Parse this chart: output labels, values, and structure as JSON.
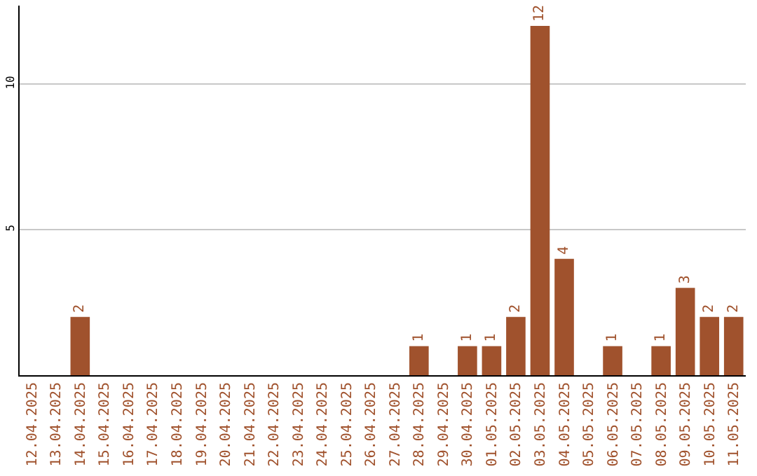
{
  "chart_data": {
    "type": "bar",
    "categories": [
      "12.04.2025",
      "13.04.2025",
      "14.04.2025",
      "15.04.2025",
      "16.04.2025",
      "17.04.2025",
      "18.04.2025",
      "19.04.2025",
      "20.04.2025",
      "21.04.2025",
      "22.04.2025",
      "23.04.2025",
      "24.04.2025",
      "25.04.2025",
      "26.04.2025",
      "27.04.2025",
      "28.04.2025",
      "29.04.2025",
      "30.04.2025",
      "01.05.2025",
      "02.05.2025",
      "03.05.2025",
      "04.05.2025",
      "05.05.2025",
      "06.05.2025",
      "07.05.2025",
      "08.05.2025",
      "09.05.2025",
      "10.05.2025",
      "11.05.2025"
    ],
    "values": [
      0,
      0,
      2,
      0,
      0,
      0,
      0,
      0,
      0,
      0,
      0,
      0,
      0,
      0,
      0,
      0,
      1,
      0,
      1,
      1,
      2,
      12,
      4,
      0,
      1,
      0,
      1,
      3,
      2,
      2
    ],
    "value_labels": [
      null,
      null,
      "2",
      null,
      null,
      null,
      null,
      null,
      null,
      null,
      null,
      null,
      null,
      null,
      null,
      null,
      "1",
      null,
      "1",
      "1",
      "2",
      "12",
      "4",
      null,
      "1",
      null,
      "1",
      "3",
      "2",
      "2"
    ],
    "color": "#a0522d",
    "ylim": [
      0,
      12.7
    ],
    "yticks": [
      5,
      10
    ],
    "grid": "y",
    "legend": false
  }
}
